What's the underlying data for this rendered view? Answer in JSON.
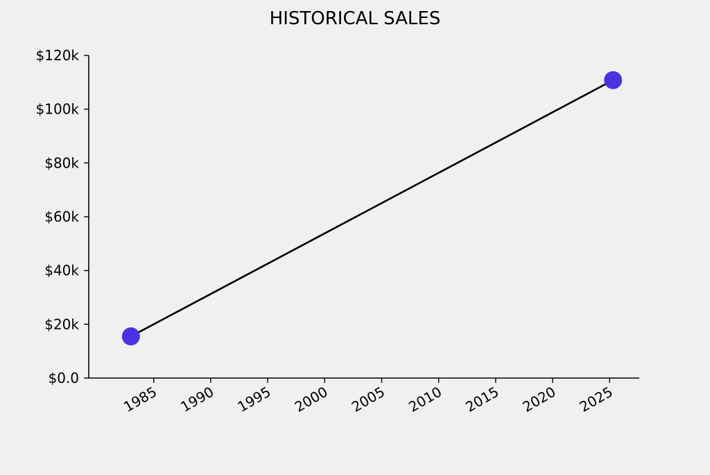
{
  "chart_data": {
    "type": "line",
    "title": "HISTORICAL SALES",
    "xlabel": "",
    "ylabel": "",
    "x": [
      1983,
      2025.3
    ],
    "series": [
      {
        "values": [
          15500,
          110800
        ]
      }
    ],
    "xlim": [
      1979.3,
      2027.6
    ],
    "ylim": [
      0,
      120000
    ],
    "x_ticks": [
      1985,
      1990,
      1995,
      2000,
      2005,
      2010,
      2015,
      2020,
      2025
    ],
    "x_tick_labels": [
      "1985",
      "1990",
      "1995",
      "2000",
      "2005",
      "2010",
      "2015",
      "2020",
      "2025"
    ],
    "y_ticks": [
      0,
      20000,
      40000,
      60000,
      80000,
      100000,
      120000
    ],
    "y_tick_labels": [
      "$0.0",
      "$20k",
      "$40k",
      "$60k",
      "$80k",
      "$100k",
      "$120k"
    ],
    "grid": false,
    "legend": "none",
    "colors": {
      "background": "#f0f0f0",
      "line": "#000000",
      "marker": "#4a32e0",
      "axis": "#000000"
    }
  }
}
